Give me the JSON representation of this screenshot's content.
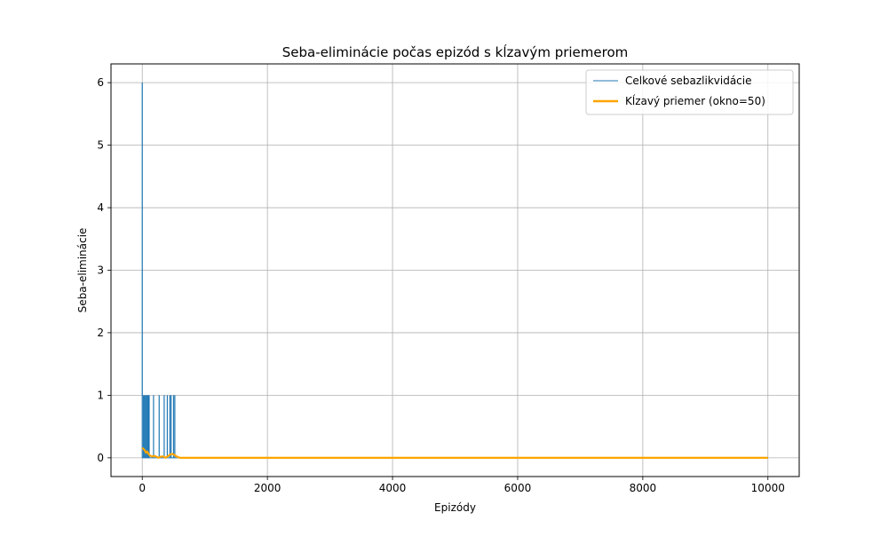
{
  "chart_data": {
    "type": "line",
    "title": "Seba-eliminácie počas epizód s kĺzavým priemerom",
    "xlabel": "Epizódy",
    "ylabel": "Seba-eliminácie",
    "xlim": [
      -500,
      10500
    ],
    "ylim": [
      -0.3,
      6.3
    ],
    "xticks": [
      0,
      2000,
      4000,
      6000,
      8000,
      10000
    ],
    "yticks": [
      0,
      1,
      2,
      3,
      4,
      5,
      6
    ],
    "grid": true,
    "legend_position": "top-right",
    "total_episodes": 10000,
    "series": [
      {
        "name": "Celkové sebazlikvidácie",
        "color": "#1f77b4",
        "spikes": [
          {
            "x": 0,
            "y": 6
          },
          {
            "x": 20,
            "y": 1
          },
          {
            "x": 35,
            "y": 1
          },
          {
            "x": 50,
            "y": 1
          },
          {
            "x": 65,
            "y": 1
          },
          {
            "x": 80,
            "y": 1
          },
          {
            "x": 95,
            "y": 1
          },
          {
            "x": 110,
            "y": 1
          },
          {
            "x": 180,
            "y": 1
          },
          {
            "x": 270,
            "y": 1
          },
          {
            "x": 350,
            "y": 1
          },
          {
            "x": 400,
            "y": 1
          },
          {
            "x": 440,
            "y": 1
          },
          {
            "x": 460,
            "y": 1
          },
          {
            "x": 500,
            "y": 1
          },
          {
            "x": 520,
            "y": 1
          }
        ],
        "baseline": 0
      },
      {
        "name": "Kĺzavý priemer (okno=50)",
        "color": "#ffa500",
        "points": [
          [
            0,
            0.16
          ],
          [
            20,
            0.14
          ],
          [
            40,
            0.12
          ],
          [
            60,
            0.08
          ],
          [
            80,
            0.1
          ],
          [
            100,
            0.06
          ],
          [
            130,
            0.03
          ],
          [
            160,
            0.02
          ],
          [
            190,
            0.03
          ],
          [
            220,
            0.02
          ],
          [
            260,
            0.0
          ],
          [
            300,
            0.02
          ],
          [
            340,
            0.02
          ],
          [
            370,
            0.0
          ],
          [
            400,
            0.02
          ],
          [
            430,
            0.04
          ],
          [
            460,
            0.06
          ],
          [
            490,
            0.06
          ],
          [
            520,
            0.04
          ],
          [
            550,
            0.02
          ],
          [
            600,
            0.0
          ],
          [
            10000,
            0.0
          ]
        ]
      }
    ]
  }
}
